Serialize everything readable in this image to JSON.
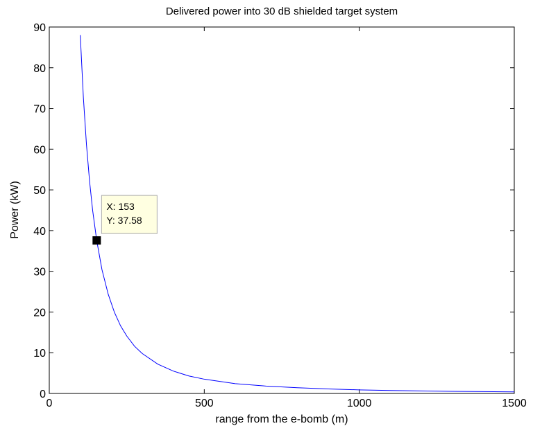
{
  "chart_data": {
    "type": "line",
    "title": "Delivered power into 30 dB shielded target system",
    "xlabel": "range from the e-bomb (m)",
    "ylabel": "Power (kW)",
    "xlim": [
      0,
      1500
    ],
    "ylim": [
      0,
      90
    ],
    "xticks": [
      0,
      500,
      1000,
      1500
    ],
    "xtick_labels": [
      "0",
      "500",
      "1000",
      "1500"
    ],
    "yticks": [
      0,
      10,
      20,
      30,
      40,
      50,
      60,
      70,
      80,
      90
    ],
    "ytick_labels": [
      "0",
      "10",
      "20",
      "30",
      "40",
      "50",
      "60",
      "70",
      "80",
      "90"
    ],
    "grid": false,
    "series": [
      {
        "color": "#0000ff",
        "relation": "inverse-square",
        "x": [
          100,
          110,
          120,
          130,
          140,
          153,
          170,
          190,
          210,
          230,
          250,
          275,
          300,
          350,
          400,
          450,
          500,
          600,
          700,
          800,
          900,
          1000,
          1100,
          1200,
          1300,
          1400,
          1500
        ],
        "y": [
          88.0,
          72.7,
          61.1,
          52.1,
          44.9,
          37.58,
          30.4,
          24.4,
          19.95,
          16.6,
          14.1,
          11.6,
          9.8,
          7.2,
          5.5,
          4.3,
          3.5,
          2.4,
          1.8,
          1.4,
          1.1,
          0.88,
          0.73,
          0.61,
          0.52,
          0.45,
          0.39
        ]
      }
    ],
    "annotation": {
      "x": 153,
      "y": 37.58,
      "x_text": "X: 153",
      "y_text": "Y: 37.58"
    }
  }
}
